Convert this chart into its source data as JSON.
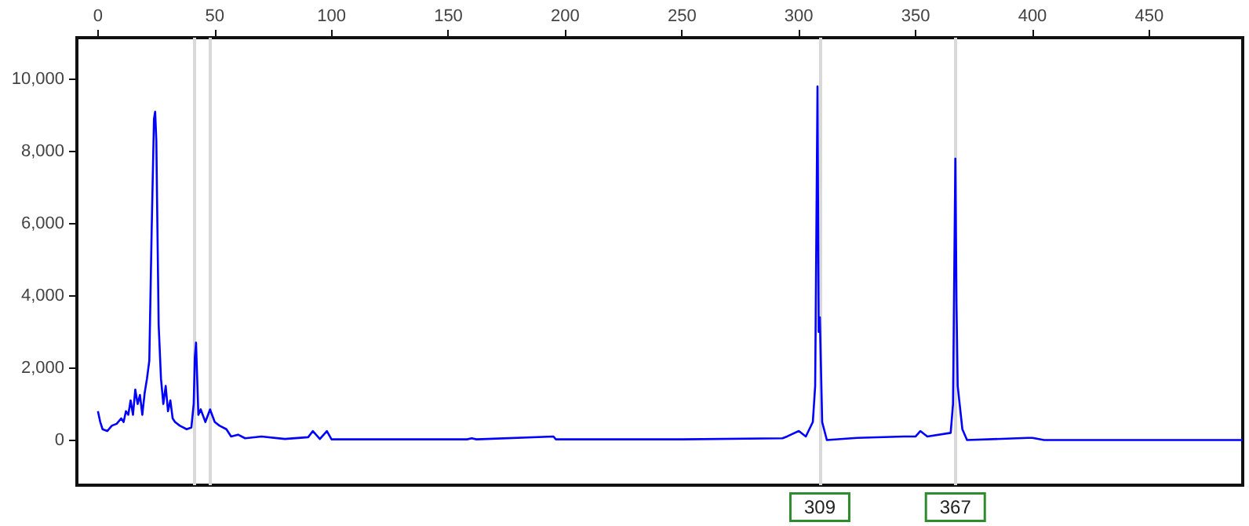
{
  "chart_data": {
    "type": "line",
    "x": [
      0,
      1,
      2,
      4,
      6,
      8,
      10,
      11,
      12,
      13,
      14,
      15,
      16,
      17,
      18,
      19,
      20,
      21,
      22,
      23,
      24,
      24.5,
      25,
      26,
      27,
      28,
      29,
      30,
      31,
      32,
      33,
      35,
      38,
      40,
      41,
      41.5,
      42,
      43,
      44,
      46,
      48,
      50,
      52,
      55,
      57,
      60,
      63,
      70,
      80,
      90,
      92,
      95,
      98,
      100,
      158,
      160,
      162,
      195,
      196,
      250,
      293,
      295,
      300,
      303,
      306,
      307,
      308,
      308.5,
      309,
      310,
      312,
      325,
      345,
      350,
      352,
      355,
      365,
      366,
      367,
      367.5,
      368,
      370,
      372,
      398,
      400,
      405,
      490
    ],
    "series": [
      {
        "color": "#0000ff",
        "values": [
          800,
          500,
          300,
          250,
          400,
          450,
          600,
          500,
          800,
          700,
          1100,
          700,
          1400,
          1000,
          1250,
          700,
          1300,
          1700,
          2200,
          5800,
          8900,
          9100,
          8300,
          3200,
          1700,
          1000,
          1500,
          800,
          1100,
          600,
          500,
          400,
          300,
          350,
          1000,
          2300,
          2700,
          700,
          850,
          500,
          850,
          500,
          400,
          300,
          100,
          150,
          50,
          100,
          30,
          80,
          250,
          30,
          250,
          20,
          20,
          50,
          20,
          100,
          20,
          20,
          50,
          100,
          250,
          100,
          500,
          1500,
          9800,
          3000,
          3400,
          500,
          0,
          60,
          100,
          100,
          250,
          100,
          200,
          1000,
          7800,
          3700,
          1500,
          300,
          0,
          60,
          60,
          0,
          0
        ]
      }
    ],
    "xlim": [
      -9,
      490
    ],
    "ylim": [
      -1250,
      11150
    ],
    "xticks": [
      0,
      50,
      100,
      150,
      200,
      250,
      300,
      350,
      400,
      450
    ],
    "yticks": [
      0,
      {
        "value": 2000,
        "label": "2,000"
      },
      {
        "value": 4000,
        "label": "4,000"
      },
      {
        "value": 6000,
        "label": "6,000"
      },
      {
        "value": 8000,
        "label": "8,000"
      },
      {
        "value": 10000,
        "label": "10,000"
      }
    ],
    "grid": false,
    "marker": "none",
    "line_style": "solid",
    "ref_lines": [
      {
        "axis": "x",
        "value": 41,
        "color": "#d9d9d9"
      },
      {
        "axis": "x",
        "value": 48,
        "color": "#d9d9d9"
      },
      {
        "axis": "x",
        "value": 309,
        "label": "309",
        "color": "#d9d9d9"
      },
      {
        "axis": "x",
        "value": 367,
        "label": "367",
        "color": "#d9d9d9"
      }
    ]
  }
}
